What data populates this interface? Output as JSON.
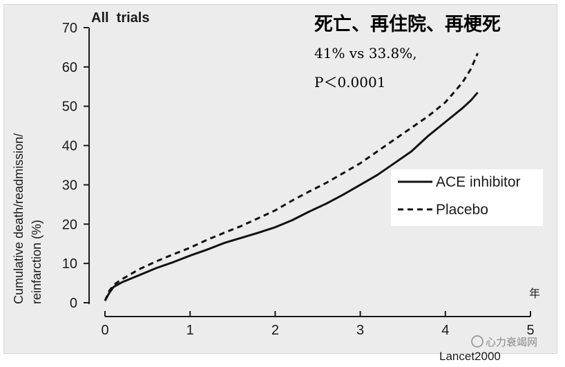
{
  "chart_data": {
    "type": "line",
    "panel_title": "All  trials",
    "headline": "死亡、再住院、再梗死",
    "stat_line1": "41% vs 33.8%,",
    "stat_line2": "P＜0.0001",
    "ylabel_line1": "Cumulative death/readmission/",
    "ylabel_line2": "reinfarction (%)",
    "x_unit": "年",
    "source": "Lancet2000",
    "watermark": "心力衰竭网",
    "xlim": [
      0,
      5
    ],
    "ylim": [
      0,
      70
    ],
    "x_ticks": [
      0,
      1,
      2,
      3,
      4,
      5
    ],
    "y_ticks": [
      0,
      10,
      20,
      30,
      40,
      50,
      60,
      70
    ],
    "legend_position": "right",
    "series": [
      {
        "name": "ACE inhibitor",
        "style": "solid",
        "color": "#111111",
        "points": [
          [
            0.0,
            0.5
          ],
          [
            0.05,
            2.5
          ],
          [
            0.1,
            4.0
          ],
          [
            0.2,
            5.2
          ],
          [
            0.4,
            7.0
          ],
          [
            0.6,
            8.8
          ],
          [
            0.8,
            10.3
          ],
          [
            1.0,
            12.0
          ],
          [
            1.2,
            13.5
          ],
          [
            1.4,
            15.2
          ],
          [
            1.6,
            16.5
          ],
          [
            1.8,
            17.8
          ],
          [
            2.0,
            19.2
          ],
          [
            2.2,
            21.0
          ],
          [
            2.4,
            23.2
          ],
          [
            2.6,
            25.2
          ],
          [
            2.8,
            27.5
          ],
          [
            3.0,
            30.0
          ],
          [
            3.2,
            32.5
          ],
          [
            3.4,
            35.5
          ],
          [
            3.6,
            38.5
          ],
          [
            3.8,
            42.5
          ],
          [
            4.0,
            46.0
          ],
          [
            4.2,
            49.5
          ],
          [
            4.3,
            51.5
          ],
          [
            4.38,
            53.5
          ]
        ]
      },
      {
        "name": "Placebo",
        "style": "dashed",
        "color": "#111111",
        "points": [
          [
            0.0,
            0.5
          ],
          [
            0.05,
            3.0
          ],
          [
            0.1,
            4.5
          ],
          [
            0.2,
            6.0
          ],
          [
            0.4,
            8.5
          ],
          [
            0.6,
            10.5
          ],
          [
            0.8,
            12.3
          ],
          [
            1.0,
            14.0
          ],
          [
            1.2,
            16.0
          ],
          [
            1.4,
            17.8
          ],
          [
            1.6,
            19.5
          ],
          [
            1.8,
            21.5
          ],
          [
            2.0,
            23.5
          ],
          [
            2.2,
            26.0
          ],
          [
            2.4,
            28.3
          ],
          [
            2.6,
            30.5
          ],
          [
            2.8,
            33.0
          ],
          [
            3.0,
            35.5
          ],
          [
            3.2,
            38.5
          ],
          [
            3.4,
            41.5
          ],
          [
            3.6,
            44.5
          ],
          [
            3.8,
            47.5
          ],
          [
            4.0,
            51.0
          ],
          [
            4.2,
            56.0
          ],
          [
            4.3,
            59.5
          ],
          [
            4.38,
            63.5
          ]
        ]
      }
    ]
  }
}
